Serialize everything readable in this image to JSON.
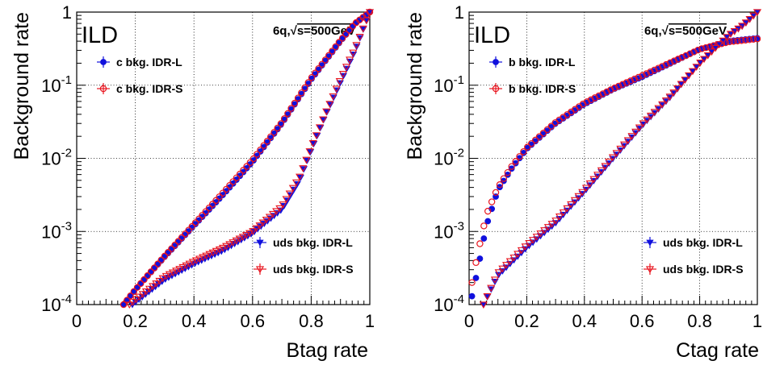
{
  "chart_data": [
    {
      "type": "scatter",
      "y_scale": "log",
      "xlim": [
        0,
        1
      ],
      "ylim": [
        0.0001,
        1
      ],
      "grid": true,
      "xlabel": "Btag rate",
      "ylabel": "Background rate",
      "experiment": "ILD",
      "energy_prefix": "6q,",
      "energy_suffix": "s=500GeV",
      "x_ticks": [
        "0",
        "0.2",
        "0.4",
        "0.6",
        "0.8",
        "1"
      ],
      "y_ticks": [
        {
          "base": "10",
          "exp": "-4",
          "value": 0.0001
        },
        {
          "base": "10",
          "exp": "-3",
          "value": 0.001
        },
        {
          "base": "10",
          "exp": "-2",
          "value": 0.01
        },
        {
          "base": "10",
          "exp": "-1",
          "value": 0.1
        },
        {
          "base": "1",
          "exp": "",
          "value": 1
        }
      ],
      "series": [
        {
          "name": "c bkg. IDR-L",
          "color": "#1010dd",
          "marker": "circle-filled",
          "legend": "top-left",
          "curve": [
            [
              0.16,
              0.0001
            ],
            [
              0.2,
              0.00016
            ],
            [
              0.3,
              0.00045
            ],
            [
              0.4,
              0.0012
            ],
            [
              0.5,
              0.0032
            ],
            [
              0.6,
              0.009
            ],
            [
              0.7,
              0.03
            ],
            [
              0.8,
              0.12
            ],
            [
              0.9,
              0.4
            ],
            [
              0.95,
              0.7
            ],
            [
              1.0,
              1.0
            ]
          ]
        },
        {
          "name": "c bkg. IDR-S",
          "color": "#e8141e",
          "marker": "circle-open",
          "legend": "top-left",
          "curve": [
            [
              0.16,
              0.0001
            ],
            [
              0.2,
              0.00016
            ],
            [
              0.3,
              0.00046
            ],
            [
              0.4,
              0.00125
            ],
            [
              0.5,
              0.0034
            ],
            [
              0.6,
              0.0095
            ],
            [
              0.7,
              0.031
            ],
            [
              0.8,
              0.125
            ],
            [
              0.9,
              0.41
            ],
            [
              0.95,
              0.7
            ],
            [
              1.0,
              1.0
            ]
          ]
        },
        {
          "name": "uds bkg. IDR-L",
          "color": "#1010dd",
          "marker": "triangle-down-filled",
          "legend": "bottom-right",
          "curve": [
            [
              0.19,
              0.0001
            ],
            [
              0.3,
              0.00022
            ],
            [
              0.4,
              0.00036
            ],
            [
              0.5,
              0.00055
            ],
            [
              0.6,
              0.00095
            ],
            [
              0.7,
              0.002
            ],
            [
              0.76,
              0.005
            ],
            [
              0.8,
              0.013
            ],
            [
              0.85,
              0.04
            ],
            [
              0.9,
              0.11
            ],
            [
              0.95,
              0.3
            ],
            [
              1.0,
              1.0
            ]
          ]
        },
        {
          "name": "uds bkg. IDR-S",
          "color": "#e8141e",
          "marker": "triangle-down-open",
          "legend": "bottom-right",
          "curve": [
            [
              0.18,
              0.0001
            ],
            [
              0.3,
              0.00024
            ],
            [
              0.4,
              0.00039
            ],
            [
              0.5,
              0.0006
            ],
            [
              0.6,
              0.001
            ],
            [
              0.7,
              0.0022
            ],
            [
              0.76,
              0.0055
            ],
            [
              0.8,
              0.014
            ],
            [
              0.85,
              0.042
            ],
            [
              0.9,
              0.12
            ],
            [
              0.95,
              0.32
            ],
            [
              1.0,
              1.0
            ]
          ]
        }
      ]
    },
    {
      "type": "scatter",
      "y_scale": "log",
      "xlim": [
        0,
        1
      ],
      "ylim": [
        0.0001,
        1
      ],
      "grid": true,
      "xlabel": "Ctag rate",
      "ylabel": "Background rate",
      "experiment": "ILD",
      "energy_prefix": "6q,",
      "energy_suffix": "s=500GeV",
      "x_ticks": [
        "0",
        "0.2",
        "0.4",
        "0.6",
        "0.8",
        "1"
      ],
      "y_ticks": [
        {
          "base": "10",
          "exp": "-4",
          "value": 0.0001
        },
        {
          "base": "10",
          "exp": "-3",
          "value": 0.001
        },
        {
          "base": "10",
          "exp": "-2",
          "value": 0.01
        },
        {
          "base": "10",
          "exp": "-1",
          "value": 0.1
        },
        {
          "base": "1",
          "exp": "",
          "value": 1
        }
      ],
      "series": [
        {
          "name": "b bkg. IDR-L",
          "color": "#1010dd",
          "marker": "circle-filled",
          "legend": "top-left",
          "curve": [
            [
              0.01,
              0.00013
            ],
            [
              0.03,
              0.0003
            ],
            [
              0.06,
              0.0012
            ],
            [
              0.1,
              0.0037
            ],
            [
              0.15,
              0.0075
            ],
            [
              0.2,
              0.0135
            ],
            [
              0.3,
              0.03
            ],
            [
              0.4,
              0.055
            ],
            [
              0.5,
              0.088
            ],
            [
              0.6,
              0.13
            ],
            [
              0.7,
              0.2
            ],
            [
              0.8,
              0.31
            ],
            [
              0.9,
              0.4
            ],
            [
              1.0,
              0.44
            ]
          ]
        },
        {
          "name": "b bkg. IDR-S",
          "color": "#e8141e",
          "marker": "circle-open",
          "legend": "top-left",
          "curve": [
            [
              0.01,
              0.0002
            ],
            [
              0.03,
              0.0005
            ],
            [
              0.06,
              0.0017
            ],
            [
              0.1,
              0.004
            ],
            [
              0.15,
              0.008
            ],
            [
              0.2,
              0.014
            ],
            [
              0.3,
              0.031
            ],
            [
              0.4,
              0.057
            ],
            [
              0.5,
              0.09
            ],
            [
              0.6,
              0.135
            ],
            [
              0.7,
              0.205
            ],
            [
              0.8,
              0.31
            ],
            [
              0.9,
              0.39
            ],
            [
              1.0,
              0.43
            ]
          ]
        },
        {
          "name": "uds bkg. IDR-L",
          "color": "#1010dd",
          "marker": "triangle-down-filled",
          "legend": "bottom-right",
          "curve": [
            [
              0.05,
              0.0001
            ],
            [
              0.1,
              0.00025
            ],
            [
              0.2,
              0.0006
            ],
            [
              0.3,
              0.0013
            ],
            [
              0.4,
              0.0035
            ],
            [
              0.5,
              0.01
            ],
            [
              0.6,
              0.028
            ],
            [
              0.7,
              0.07
            ],
            [
              0.8,
              0.2
            ],
            [
              0.9,
              0.48
            ],
            [
              0.95,
              0.65
            ],
            [
              1.0,
              1.0
            ]
          ]
        },
        {
          "name": "uds bkg. IDR-S",
          "color": "#e8141e",
          "marker": "triangle-down-open",
          "legend": "bottom-right",
          "curve": [
            [
              0.05,
              0.0001
            ],
            [
              0.1,
              0.00027
            ],
            [
              0.2,
              0.00065
            ],
            [
              0.3,
              0.0014
            ],
            [
              0.4,
              0.0037
            ],
            [
              0.5,
              0.0105
            ],
            [
              0.6,
              0.029
            ],
            [
              0.7,
              0.072
            ],
            [
              0.8,
              0.2
            ],
            [
              0.9,
              0.48
            ],
            [
              0.95,
              0.66
            ],
            [
              1.0,
              1.0
            ]
          ]
        }
      ]
    }
  ]
}
